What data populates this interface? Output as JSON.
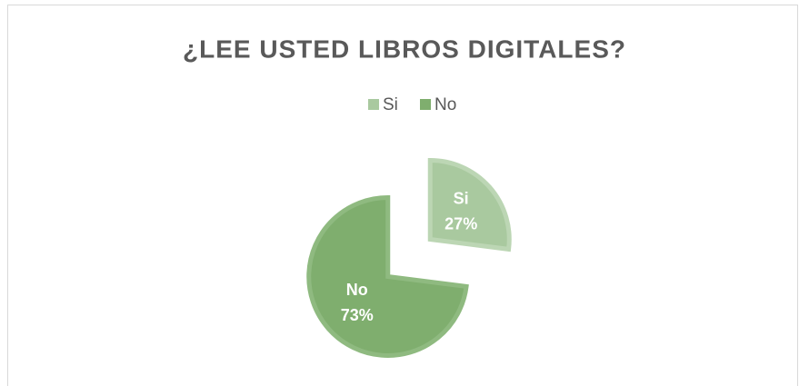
{
  "chart_data": {
    "type": "pie",
    "title": "¿LEE USTED LIBROS DIGITALES?",
    "categories": [
      "Si",
      "No"
    ],
    "values": [
      27,
      73
    ],
    "value_labels": [
      "27%",
      "73%"
    ],
    "colors": [
      "#a9c99f",
      "#7fae6e"
    ],
    "border_colors": [
      "#bcd6b4",
      "#8fba80"
    ],
    "legend": "top",
    "exploded": true
  }
}
